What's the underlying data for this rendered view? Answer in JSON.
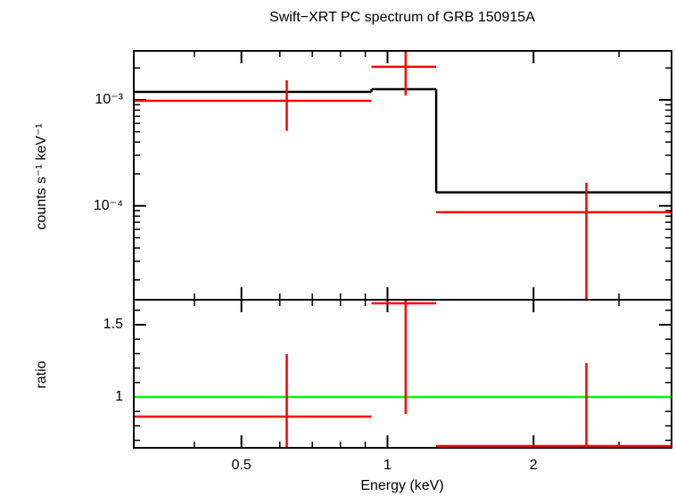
{
  "chart_data": [
    {
      "type": "spectrum",
      "title": "Swift−XRT PC spectrum of GRB 150915A",
      "ylabel": "counts s⁻¹ keV⁻¹",
      "xscale": "log",
      "yscale": "log",
      "xlim": [
        0.3,
        3.85
      ],
      "ylim": [
        1.3e-05,
        0.0029
      ],
      "xticks": [
        0.5,
        1,
        2
      ],
      "xminor": [
        0.3,
        0.4,
        0.6,
        0.7,
        0.8,
        0.9,
        3
      ],
      "yticks": [
        {
          "value": 0.001,
          "label": "10⁻³"
        },
        {
          "value": 0.0001,
          "label": "10⁻⁴"
        }
      ],
      "yminor": [
        2e-05,
        3e-05,
        4e-05,
        5e-05,
        6e-05,
        7e-05,
        8e-05,
        9e-05,
        0.0002,
        0.0003,
        0.0004,
        0.0005,
        0.0006,
        0.0007,
        0.0008,
        0.0009,
        0.002
      ],
      "bins": [
        0.3,
        0.927,
        1.26,
        3.85
      ],
      "x": [
        0.62,
        1.09,
        2.57
      ],
      "values": [
        0.00098,
        0.00205,
        8.7e-05
      ],
      "y_low": [
        0.00051,
        0.0011,
        1.3e-05
      ],
      "y_high": [
        0.00153,
        0.0029,
        0.000165
      ],
      "color": "#ff0000",
      "model": [
        0.00119,
        0.00126,
        0.000134
      ],
      "model_color": "#000000"
    },
    {
      "type": "ratio",
      "ylabel": "ratio",
      "xlabel": "Energy (keV)",
      "xscale": "log",
      "yscale": "linear",
      "xlim": [
        0.3,
        3.85
      ],
      "ylim": [
        0.648,
        1.673
      ],
      "xticks": [
        0.5,
        1,
        2
      ],
      "xminor": [
        0.3,
        0.4,
        0.6,
        0.7,
        0.8,
        0.9,
        3
      ],
      "yticks": [
        1.5,
        1
      ],
      "yminor": [
        0.7,
        0.8,
        0.9,
        1.1,
        1.2,
        1.3,
        1.4,
        1.6
      ],
      "bins": [
        0.3,
        0.927,
        1.26,
        3.85
      ],
      "x": [
        0.62,
        1.09,
        2.57
      ],
      "values": [
        0.864,
        1.648,
        0.66
      ],
      "y_low": [
        0.648,
        0.883,
        0.648
      ],
      "y_high": [
        1.296,
        1.673,
        1.235
      ],
      "color": "#ff0000",
      "reference": 1,
      "reference_color": "#00ff00"
    }
  ]
}
